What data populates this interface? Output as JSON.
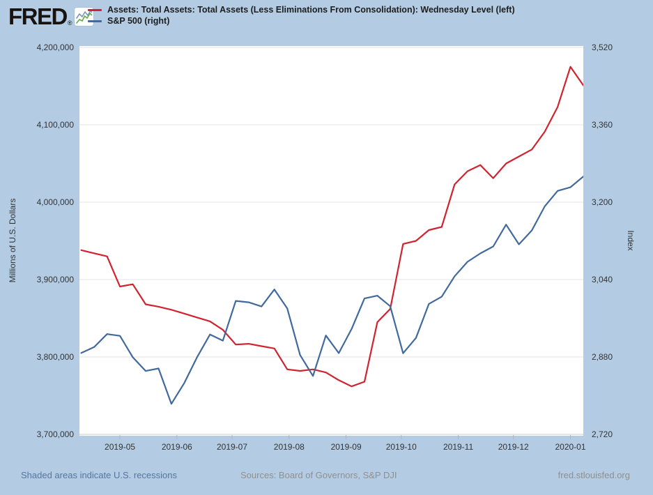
{
  "brand": {
    "logo_text": "FRED",
    "registered_mark": "®"
  },
  "legend": [
    {
      "label": "Assets: Total Assets: Total Assets (Less Eliminations From Consolidation): Wednesday Level (left)",
      "color": "#d1232f"
    },
    {
      "label": "S&P 500 (right)",
      "color": "#41699c"
    }
  ],
  "footer": {
    "left": "Shaded areas indicate U.S. recessions",
    "center": "Sources: Board of Governors, S&P DJI",
    "right": "fred.stlouisfed.org"
  },
  "colors": {
    "background": "#b3cce4",
    "plot_background": "#ffffff",
    "gridline": "#e3e3e3",
    "axis_line": "#c9c9c9",
    "tick_mark": "#a9b5c3",
    "assets_line": "#d1232f",
    "sp500_line": "#41699c"
  },
  "chart_data": {
    "type": "line",
    "title": "",
    "grid": "horizontal",
    "legend_position": "top-left",
    "x_min": "2019-04-09",
    "x_max": "2020-01-08",
    "x_ticks": [
      {
        "date": "2019-05-01",
        "label": "2019-05"
      },
      {
        "date": "2019-06-01",
        "label": "2019-06"
      },
      {
        "date": "2019-07-01",
        "label": "2019-07"
      },
      {
        "date": "2019-08-01",
        "label": "2019-08"
      },
      {
        "date": "2019-09-01",
        "label": "2019-09"
      },
      {
        "date": "2019-10-01",
        "label": "2019-10"
      },
      {
        "date": "2019-11-01",
        "label": "2019-11"
      },
      {
        "date": "2019-12-01",
        "label": "2019-12"
      },
      {
        "date": "2020-01-01",
        "label": "2020-01"
      }
    ],
    "left_axis": {
      "title": "Millions of U.S. Dollars",
      "min": 3700000,
      "max": 4200000,
      "ticks": [
        4200000,
        4100000,
        4000000,
        3900000,
        3800000,
        3700000
      ],
      "tick_labels": [
        "4,200,000",
        "4,100,000",
        "4,000,000",
        "3,900,000",
        "3,800,000",
        "3,700,000"
      ]
    },
    "right_axis": {
      "title": "Index",
      "min": 2720,
      "max": 3520,
      "ticks": [
        3520,
        3360,
        3200,
        3040,
        2880,
        2720
      ],
      "tick_labels": [
        "3,520",
        "3,360",
        "3,200",
        "3,040",
        "2,880",
        "2,720"
      ]
    },
    "dates": [
      "2019-04-10",
      "2019-04-17",
      "2019-04-24",
      "2019-05-01",
      "2019-05-08",
      "2019-05-15",
      "2019-05-22",
      "2019-05-29",
      "2019-06-05",
      "2019-06-12",
      "2019-06-19",
      "2019-06-26",
      "2019-07-03",
      "2019-07-10",
      "2019-07-17",
      "2019-07-24",
      "2019-07-31",
      "2019-08-07",
      "2019-08-14",
      "2019-08-21",
      "2019-08-28",
      "2019-09-04",
      "2019-09-11",
      "2019-09-18",
      "2019-09-25",
      "2019-10-02",
      "2019-10-09",
      "2019-10-16",
      "2019-10-23",
      "2019-10-30",
      "2019-11-06",
      "2019-11-13",
      "2019-11-20",
      "2019-11-27",
      "2019-12-04",
      "2019-12-11",
      "2019-12-18",
      "2019-12-25",
      "2020-01-01",
      "2020-01-08"
    ],
    "series": [
      {
        "name": "Assets: Total Assets: Total Assets (Less Eliminations From Consolidation): Wednesday Level",
        "axis": "left",
        "color": "#d1232f",
        "values": [
          3938000,
          3934000,
          3930000,
          3891000,
          3894000,
          3868000,
          3865000,
          3861000,
          3856000,
          3851000,
          3846000,
          3835000,
          3816000,
          3817000,
          3814000,
          3811000,
          3784000,
          3782000,
          3784000,
          3780000,
          3770000,
          3762000,
          3768000,
          3845000,
          3862000,
          3946000,
          3950000,
          3964000,
          3968000,
          4023000,
          4040000,
          4048000,
          4031000,
          4050000,
          4059000,
          4068000,
          4091000,
          4123000,
          4175000,
          4151000
        ]
      },
      {
        "name": "S&P 500",
        "axis": "right",
        "color": "#41699c",
        "values": [
          2888.21,
          2900.45,
          2927.25,
          2923.73,
          2879.42,
          2850.96,
          2856.27,
          2783.02,
          2826.15,
          2879.84,
          2926.46,
          2913.78,
          2995.82,
          2993.07,
          2984.42,
          3019.56,
          2980.38,
          2883.98,
          2840.6,
          2924.43,
          2887.94,
          2937.78,
          3000.93,
          3006.73,
          2984.87,
          2887.61,
          2919.4,
          2989.69,
          3004.52,
          3046.77,
          3076.78,
          3094.04,
          3108.46,
          3153.63,
          3112.76,
          3141.63,
          3191.14,
          3223.38,
          3230.78,
          3253.05
        ]
      }
    ]
  }
}
